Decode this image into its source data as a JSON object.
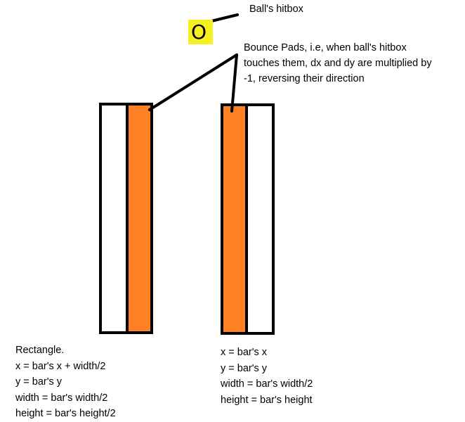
{
  "title": "",
  "colors": {
    "pad": "#fe8126",
    "bar_fill": "#ffffff",
    "outline": "#000000",
    "hitbox": "#f5f020"
  },
  "ball": {
    "glyph": "O",
    "label": "Ball's  hitbox"
  },
  "bounce_pads": {
    "lines": [
      "Bounce Pads, i.e, when ball's hitbox",
      "touches them, dx and dy are multiplied by",
      "-1, reversing their direction"
    ]
  },
  "left_rectangle": {
    "lines": [
      "Rectangle.",
      "x = bar's x + width/2",
      "y = bar's y",
      "width = bar's width/2",
      "height = bar's height/2"
    ]
  },
  "right_rectangle": {
    "lines": [
      "x = bar's x",
      "y = bar's y",
      "width = bar's width/2",
      "height = bar's height"
    ]
  }
}
